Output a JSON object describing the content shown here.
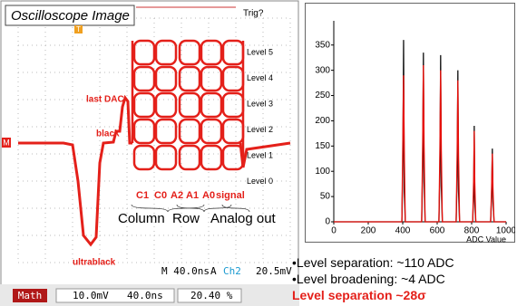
{
  "scope": {
    "title": "Oscilloscope Image",
    "trigger": "Trig?",
    "levels": [
      "Level 5",
      "Level 4",
      "Level 3",
      "Level 2",
      "Level 1",
      "Level 0"
    ],
    "annotations": {
      "last_dac": "last DAC",
      "black": "black",
      "ultrablack": "ultrablack"
    },
    "address_labels": [
      "C1",
      "C0",
      "A2",
      "A1",
      "A0",
      "signal"
    ],
    "group_labels": [
      "Column",
      "Row",
      "Analog out"
    ],
    "ground_marker": "M",
    "trigger_marker": "T",
    "status": [
      "M 40.0ns",
      "A",
      "Ch2",
      "20.5mV"
    ],
    "math": {
      "label": "Math",
      "volts": "10.0mV",
      "time": "40.0ns",
      "percent": "20.40 %"
    }
  },
  "chart_data": {
    "type": "line",
    "x_label": "ADC Value",
    "x": [
      0,
      395,
      401,
      405,
      409,
      415,
      510,
      516,
      520,
      524,
      530,
      610,
      616,
      620,
      624,
      630,
      710,
      716,
      720,
      724,
      730,
      806,
      812,
      815,
      818,
      824,
      910,
      916,
      920,
      924,
      930,
      1000
    ],
    "series": [
      {
        "color": "#111111",
        "values": [
          0,
          0,
          120,
          360,
          60,
          0,
          0,
          110,
          335,
          80,
          0,
          0,
          100,
          330,
          70,
          0,
          0,
          90,
          300,
          60,
          0,
          0,
          60,
          190,
          40,
          0,
          0,
          50,
          145,
          40,
          0,
          0
        ]
      },
      {
        "color": "#e8100b",
        "values": [
          0,
          0,
          170,
          290,
          140,
          0,
          0,
          160,
          310,
          150,
          0,
          0,
          150,
          300,
          140,
          0,
          0,
          140,
          280,
          130,
          0,
          0,
          90,
          180,
          80,
          0,
          0,
          70,
          135,
          60,
          0,
          0
        ]
      }
    ],
    "xlim": [
      0,
      1000
    ],
    "ylim": [
      0,
      380
    ],
    "xticks": [
      0,
      200,
      400,
      600,
      800,
      1000
    ],
    "yticks": [
      0,
      50,
      100,
      150,
      200,
      250,
      300,
      350
    ]
  },
  "notes": [
    "•Level separation: ~110 ADC",
    "•Level broadening: ~4 ADC",
    "Level separation ~28σ"
  ]
}
